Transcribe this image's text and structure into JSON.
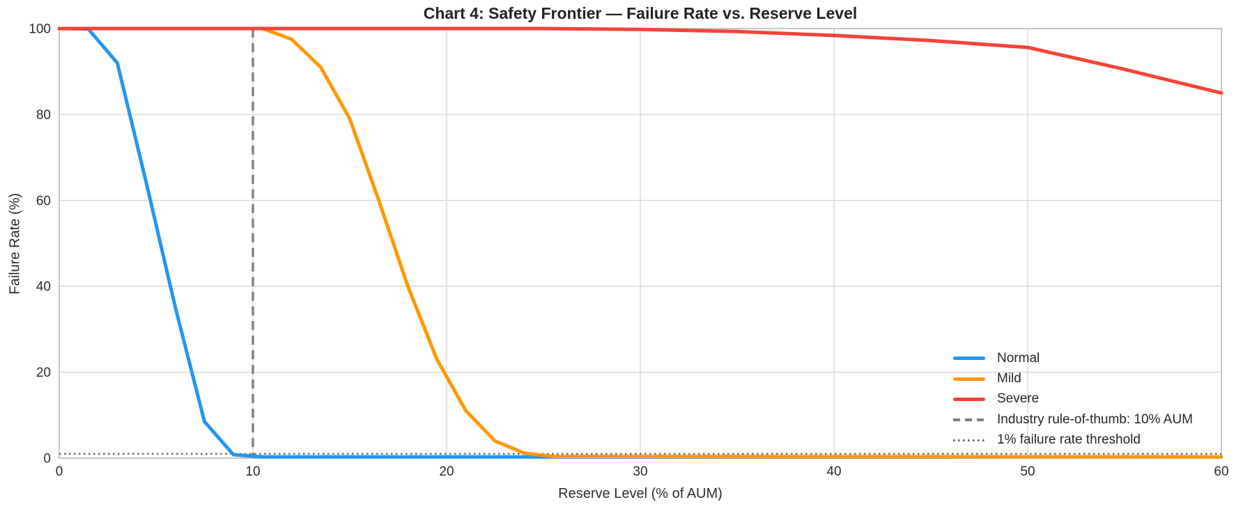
{
  "title": "Chart 4: Safety Frontier — Failure Rate vs. Reserve Level",
  "axes": {
    "xlabel": "Reserve Level (% of AUM)",
    "ylabel": "Failure Rate (%)",
    "x_ticks": [
      0,
      10,
      20,
      30,
      40,
      50,
      60
    ],
    "y_ticks": [
      0,
      20,
      40,
      60,
      80,
      100
    ],
    "xlim": [
      0,
      60
    ],
    "ylim": [
      0,
      100
    ],
    "grid": true
  },
  "colors": {
    "normal": "#2196F3",
    "mild": "#FF9800",
    "severe": "#F44336",
    "rule_of_thumb": "#7F7F7F",
    "threshold": "#666666",
    "gridline": "#DCDCDC"
  },
  "legend": {
    "position": "lower right",
    "entries": [
      {
        "label": "Normal",
        "color": "#2196F3",
        "style": "solid"
      },
      {
        "label": "Mild",
        "color": "#FF9800",
        "style": "solid"
      },
      {
        "label": "Severe",
        "color": "#F44336",
        "style": "solid"
      },
      {
        "label": "Industry rule-of-thumb: 10% AUM",
        "color": "#7F7F7F",
        "style": "dashed"
      },
      {
        "label": "1% failure rate threshold",
        "color": "#666666",
        "style": "dotted"
      }
    ]
  },
  "chart_data": {
    "type": "line",
    "title": "Chart 4: Safety Frontier — Failure Rate vs. Reserve Level",
    "xlabel": "Reserve Level (% of AUM)",
    "ylabel": "Failure Rate (%)",
    "xlim": [
      0,
      60
    ],
    "ylim": [
      0,
      100
    ],
    "legend_position": "lower right",
    "grid": true,
    "series": [
      {
        "name": "Normal",
        "color": "#2196F3",
        "points": [
          [
            0,
            100
          ],
          [
            1.5,
            99.9
          ],
          [
            3,
            92
          ],
          [
            4.5,
            64
          ],
          [
            6,
            35
          ],
          [
            7.5,
            8.5
          ],
          [
            9,
            0.8
          ],
          [
            10.5,
            0.3
          ],
          [
            60,
            0.3
          ]
        ]
      },
      {
        "name": "Mild",
        "color": "#FF9800",
        "points": [
          [
            0,
            100
          ],
          [
            10.5,
            100
          ],
          [
            12,
            97.5
          ],
          [
            13.5,
            91
          ],
          [
            15,
            79
          ],
          [
            16.5,
            60
          ],
          [
            18,
            40
          ],
          [
            19.5,
            23
          ],
          [
            21,
            11
          ],
          [
            22.5,
            4
          ],
          [
            24,
            1.2
          ],
          [
            25.5,
            0.4
          ],
          [
            60,
            0.3
          ]
        ]
      },
      {
        "name": "Severe",
        "color": "#F44336",
        "points": [
          [
            0,
            100
          ],
          [
            25,
            100
          ],
          [
            30,
            99.8
          ],
          [
            35,
            99.3
          ],
          [
            40,
            98.4
          ],
          [
            45,
            97.2
          ],
          [
            50,
            95.6
          ],
          [
            55,
            90.5
          ],
          [
            60,
            85
          ]
        ]
      }
    ],
    "reference_lines": [
      {
        "type": "vline",
        "x": 10,
        "style": "dashed",
        "color": "#7F7F7F",
        "label": "Industry rule-of-thumb: 10% AUM"
      },
      {
        "type": "hline",
        "y": 1,
        "style": "dotted",
        "color": "#666666",
        "label": "1% failure rate threshold"
      }
    ]
  }
}
